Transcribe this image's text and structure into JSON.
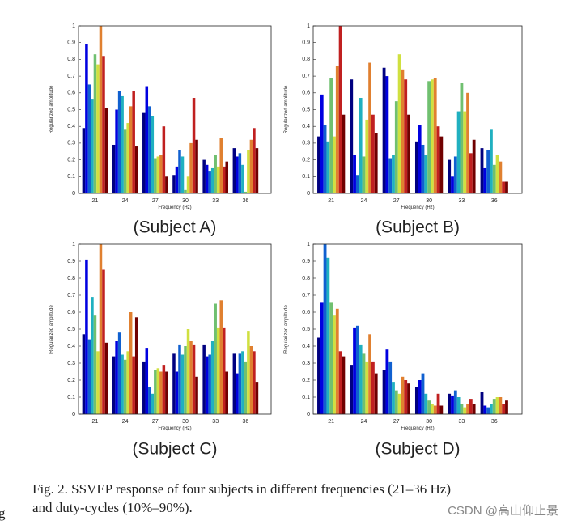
{
  "chart_data": [
    {
      "type": "bar",
      "title": "(Subject A)",
      "x_label": "Frequency (Hz)",
      "y_label": "Regularized amplitude",
      "categories": [
        "21",
        "24",
        "27",
        "30",
        "33",
        "36"
      ],
      "ylim": [
        0,
        1
      ],
      "yticks": [
        0,
        0.1,
        0.2,
        0.3,
        0.4,
        0.5,
        0.6,
        0.7,
        0.8,
        0.9,
        1
      ],
      "series": [
        {
          "color": "#000080",
          "values": [
            0.39,
            0.29,
            0.48,
            0.11,
            0.2,
            0.27
          ]
        },
        {
          "color": "#0000e0",
          "values": [
            0.89,
            0.5,
            0.64,
            0.16,
            0.17,
            0.22
          ]
        },
        {
          "color": "#1060d0",
          "values": [
            0.65,
            0.61,
            0.52,
            0.26,
            0.13,
            0.24
          ]
        },
        {
          "color": "#20b0c0",
          "values": [
            0.56,
            0.58,
            0.46,
            0.22,
            0.15,
            0.17
          ]
        },
        {
          "color": "#70c070",
          "values": [
            0.83,
            0.38,
            0.21,
            0.02,
            0.23,
            0.01
          ]
        },
        {
          "color": "#d0e040",
          "values": [
            0.77,
            0.42,
            0.22,
            0.1,
            0.16,
            0.26
          ]
        },
        {
          "color": "#e08030",
          "values": [
            1,
            0.52,
            0.23,
            0.3,
            0.33,
            0.32
          ]
        },
        {
          "color": "#c02020",
          "values": [
            0.82,
            0.61,
            0.4,
            0.57,
            0.16,
            0.39
          ]
        },
        {
          "color": "#700000",
          "values": [
            0.51,
            0.28,
            0.1,
            0.32,
            0.19,
            0.27
          ]
        }
      ]
    },
    {
      "type": "bar",
      "title": "(Subject B)",
      "x_label": "Frequency (Hz)",
      "y_label": "Regularized amplitude",
      "categories": [
        "21",
        "24",
        "27",
        "30",
        "33",
        "36"
      ],
      "ylim": [
        0,
        1
      ],
      "yticks": [
        0,
        0.1,
        0.2,
        0.3,
        0.4,
        0.5,
        0.6,
        0.7,
        0.8,
        0.9,
        1
      ],
      "series": [
        {
          "color": "#000080",
          "values": [
            0.34,
            0.68,
            0.75,
            0.31,
            0.2,
            0.27
          ]
        },
        {
          "color": "#0000e0",
          "values": [
            0.59,
            0.23,
            0.7,
            0.41,
            0.1,
            0.15
          ]
        },
        {
          "color": "#1060d0",
          "values": [
            0.41,
            0.11,
            0.21,
            0.29,
            0.22,
            0.26
          ]
        },
        {
          "color": "#20b0c0",
          "values": [
            0.31,
            0.57,
            0.23,
            0.23,
            0.49,
            0.38
          ]
        },
        {
          "color": "#70c070",
          "values": [
            0.69,
            0.22,
            0.55,
            0.67,
            0.66,
            0.17
          ]
        },
        {
          "color": "#d0e040",
          "values": [
            0.34,
            0.44,
            0.83,
            0.68,
            0.49,
            0.23
          ]
        },
        {
          "color": "#e08030",
          "values": [
            0.76,
            0.78,
            0.74,
            0.69,
            0.6,
            0.19
          ]
        },
        {
          "color": "#c02020",
          "values": [
            1,
            0.47,
            0.68,
            0.4,
            0.24,
            0.07
          ]
        },
        {
          "color": "#700000",
          "values": [
            0.47,
            0.36,
            0.47,
            0.34,
            0.32,
            0.07
          ]
        }
      ]
    },
    {
      "type": "bar",
      "title": "(Subject C)",
      "x_label": "Frequency (Hz)",
      "y_label": "Regularized amplitude",
      "categories": [
        "21",
        "24",
        "27",
        "30",
        "33",
        "36"
      ],
      "ylim": [
        0,
        1
      ],
      "yticks": [
        0,
        0.1,
        0.2,
        0.3,
        0.4,
        0.5,
        0.6,
        0.7,
        0.8,
        0.9,
        1
      ],
      "series": [
        {
          "color": "#000080",
          "values": [
            0.47,
            0.34,
            0.31,
            0.36,
            0.41,
            0.36
          ]
        },
        {
          "color": "#0000e0",
          "values": [
            0.91,
            0.43,
            0.39,
            0.25,
            0.34,
            0.24
          ]
        },
        {
          "color": "#1060d0",
          "values": [
            0.44,
            0.48,
            0.16,
            0.41,
            0.35,
            0.36
          ]
        },
        {
          "color": "#20b0c0",
          "values": [
            0.69,
            0.35,
            0.12,
            0.35,
            0.43,
            0.37
          ]
        },
        {
          "color": "#70c070",
          "values": [
            0.58,
            0.32,
            0.26,
            0.4,
            0.65,
            0.31
          ]
        },
        {
          "color": "#d0e040",
          "values": [
            0.37,
            0.37,
            0.27,
            0.5,
            0.51,
            0.49
          ]
        },
        {
          "color": "#e08030",
          "values": [
            1,
            0.6,
            0.25,
            0.43,
            0.67,
            0.4
          ]
        },
        {
          "color": "#c02020",
          "values": [
            0.85,
            0.34,
            0.29,
            0.41,
            0.51,
            0.37
          ]
        },
        {
          "color": "#700000",
          "values": [
            0.42,
            0.57,
            0.25,
            0.22,
            0.25,
            0.19
          ]
        }
      ]
    },
    {
      "type": "bar",
      "title": "(Subject D)",
      "x_label": "Frequency (Hz)",
      "y_label": "Regularized amplitude",
      "categories": [
        "21",
        "24",
        "27",
        "30",
        "33",
        "36"
      ],
      "ylim": [
        0,
        1
      ],
      "yticks": [
        0,
        0.1,
        0.2,
        0.3,
        0.4,
        0.5,
        0.6,
        0.7,
        0.8,
        0.9,
        1
      ],
      "series": [
        {
          "color": "#000080",
          "values": [
            0.45,
            0.29,
            0.26,
            0.16,
            0.12,
            0.13
          ]
        },
        {
          "color": "#0000e0",
          "values": [
            0.66,
            0.51,
            0.38,
            0.2,
            0.11,
            0.05
          ]
        },
        {
          "color": "#1060d0",
          "values": [
            1,
            0.52,
            0.31,
            0.24,
            0.14,
            0.04
          ]
        },
        {
          "color": "#20b0c0",
          "values": [
            0.92,
            0.41,
            0.19,
            0.12,
            0.1,
            0.06
          ]
        },
        {
          "color": "#70c070",
          "values": [
            0.66,
            0.36,
            0.14,
            0.08,
            0.06,
            0.09
          ]
        },
        {
          "color": "#d0e040",
          "values": [
            0.58,
            0.31,
            0.12,
            0.06,
            0.04,
            0.1
          ]
        },
        {
          "color": "#e08030",
          "values": [
            0.62,
            0.47,
            0.22,
            0.05,
            0.06,
            0.1
          ]
        },
        {
          "color": "#c02020",
          "values": [
            0.37,
            0.31,
            0.2,
            0.12,
            0.09,
            0.06
          ]
        },
        {
          "color": "#700000",
          "values": [
            0.34,
            0.24,
            0.18,
            0.05,
            0.06,
            0.08
          ]
        }
      ]
    }
  ],
  "caption": [
    "Fig. 2.   SSVEP response of four subjects in different frequencies (21–36 Hz)",
    "and duty-cycles (10%–90%)."
  ],
  "margin_text": "g",
  "watermark": "CSDN @高山仰止景"
}
